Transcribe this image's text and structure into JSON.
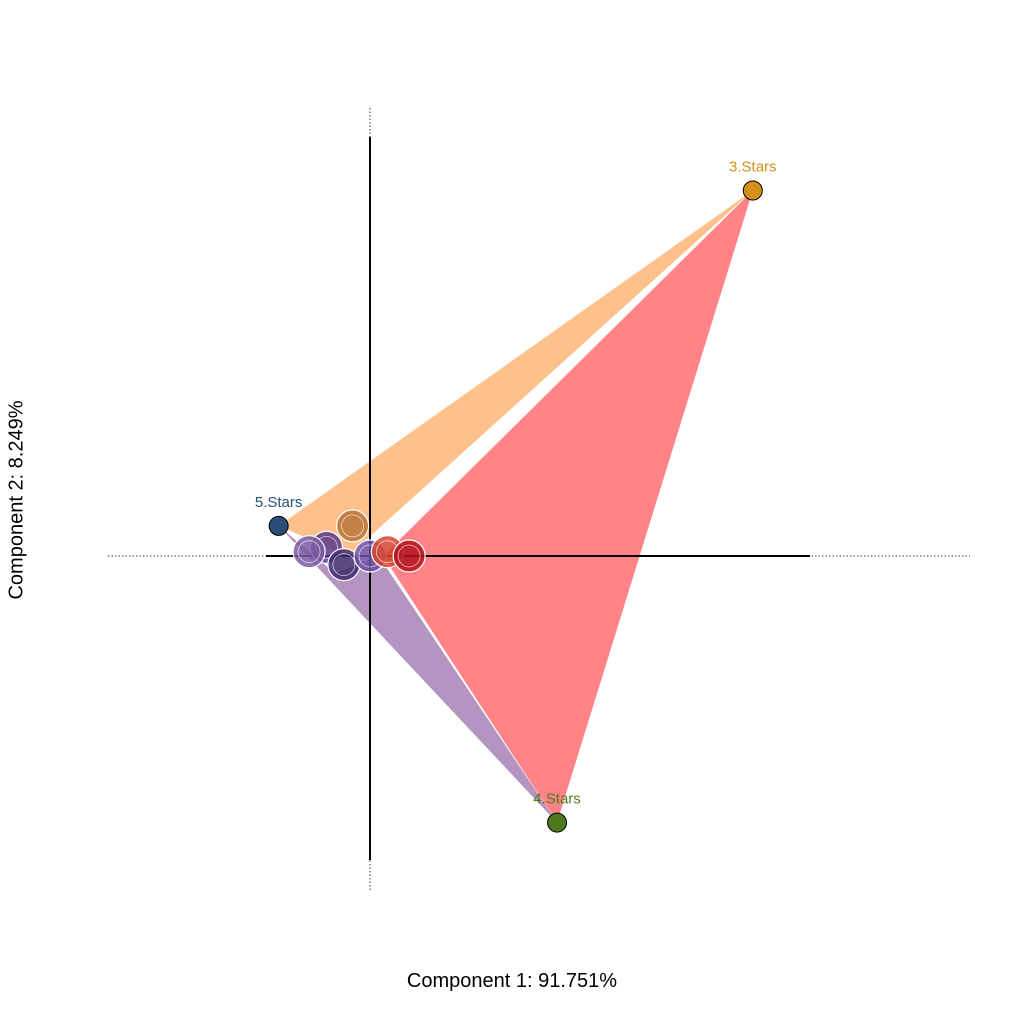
{
  "chart_data": {
    "type": "scatter",
    "xlabel": "Component 1: 91.751%",
    "ylabel": "Component 2: 8.249%",
    "grid": false,
    "axes_through_origin": true,
    "x_range": [
      -0.6,
      1.4
    ],
    "y_range": [
      -0.7,
      0.9
    ],
    "anchor_points": [
      {
        "label": "3.Stars",
        "x": 0.88,
        "y": 0.85,
        "color": "#D4901A"
      },
      {
        "label": "5.Stars",
        "x": -0.21,
        "y": 0.07,
        "color": "#2B4E78"
      },
      {
        "label": "4.Stars",
        "x": 0.43,
        "y": -0.62,
        "color": "#4E7A1E"
      }
    ],
    "polygons": [
      {
        "color": "#FFA04D",
        "opacity": 0.65,
        "vertices": [
          [
            -0.21,
            0.07
          ],
          [
            0.88,
            0.85
          ],
          [
            -0.05,
            0.0
          ]
        ]
      },
      {
        "color": "#8C5A9E",
        "opacity": 0.65,
        "vertices": [
          [
            -0.21,
            0.07
          ],
          [
            0.43,
            -0.62
          ],
          [
            0.02,
            0.0
          ],
          [
            -0.08,
            -0.04
          ]
        ]
      },
      {
        "color": "#FF5A5F",
        "opacity": 0.75,
        "vertices": [
          [
            0.03,
            0.0
          ],
          [
            0.88,
            0.85
          ],
          [
            0.43,
            -0.62
          ]
        ]
      }
    ],
    "brand_markers": [
      {
        "x": -0.1,
        "y": 0.02,
        "color": "#5B3A8C"
      },
      {
        "x": -0.04,
        "y": 0.07,
        "color": "#B9753A"
      },
      {
        "x": -0.06,
        "y": -0.02,
        "color": "#3D2A6B"
      },
      {
        "x": 0.0,
        "y": 0.0,
        "color": "#6F4FA0"
      },
      {
        "x": 0.04,
        "y": 0.01,
        "color": "#D6452F"
      },
      {
        "x": 0.09,
        "y": 0.0,
        "color": "#B1121D"
      },
      {
        "x": -0.14,
        "y": 0.01,
        "color": "#7A5BA3"
      }
    ]
  }
}
